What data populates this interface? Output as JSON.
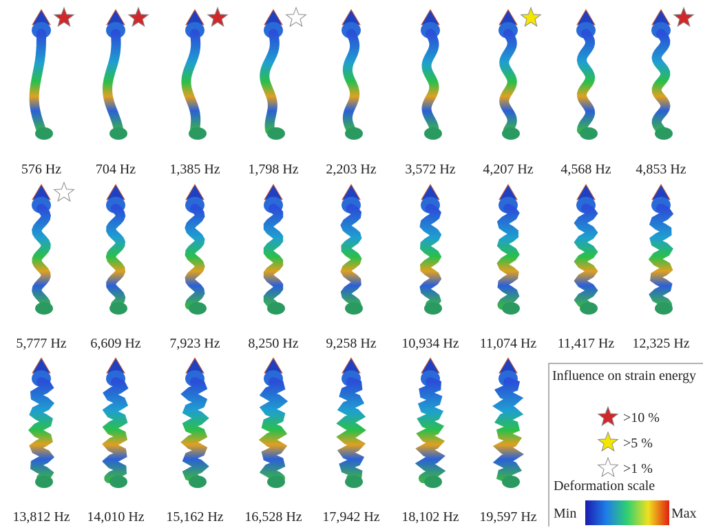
{
  "figure": {
    "modes": [
      {
        "label": "576 Hz",
        "star": "#d0282a"
      },
      {
        "label": "704 Hz",
        "star": "#d0282a"
      },
      {
        "label": "1,385 Hz",
        "star": "#d0282a"
      },
      {
        "label": "1,798 Hz",
        "star": "#ffffff"
      },
      {
        "label": "2,203 Hz"
      },
      {
        "label": "3,572 Hz"
      },
      {
        "label": "4,207 Hz",
        "star": "#f5e600"
      },
      {
        "label": "4,568 Hz"
      },
      {
        "label": "4,853 Hz",
        "star": "#d0282a"
      },
      {
        "label": "5,777 Hz",
        "star": "#ffffff"
      },
      {
        "label": "6,609 Hz"
      },
      {
        "label": "7,923 Hz"
      },
      {
        "label": "8,250 Hz"
      },
      {
        "label": "9,258 Hz"
      },
      {
        "label": "10,934 Hz"
      },
      {
        "label": "11,074 Hz"
      },
      {
        "label": "11,417 Hz"
      },
      {
        "label": "12,325 Hz"
      },
      {
        "label": "13,812 Hz"
      },
      {
        "label": "14,010 Hz"
      },
      {
        "label": "15,162 Hz"
      },
      {
        "label": "16,528 Hz"
      },
      {
        "label": "17,942 Hz"
      },
      {
        "label": "18,102 Hz"
      },
      {
        "label": "19,597 Hz"
      }
    ],
    "legend": {
      "title": "Influence on strain energy",
      "items": [
        {
          "label": ">10 %",
          "color": "#d0282a"
        },
        {
          "label": ">5 %",
          "color": "#f5e600"
        },
        {
          "label": ">1 %",
          "color": "#ffffff"
        }
      ],
      "scale_title": "Deformation scale",
      "min": "Min",
      "max": "Max"
    }
  }
}
